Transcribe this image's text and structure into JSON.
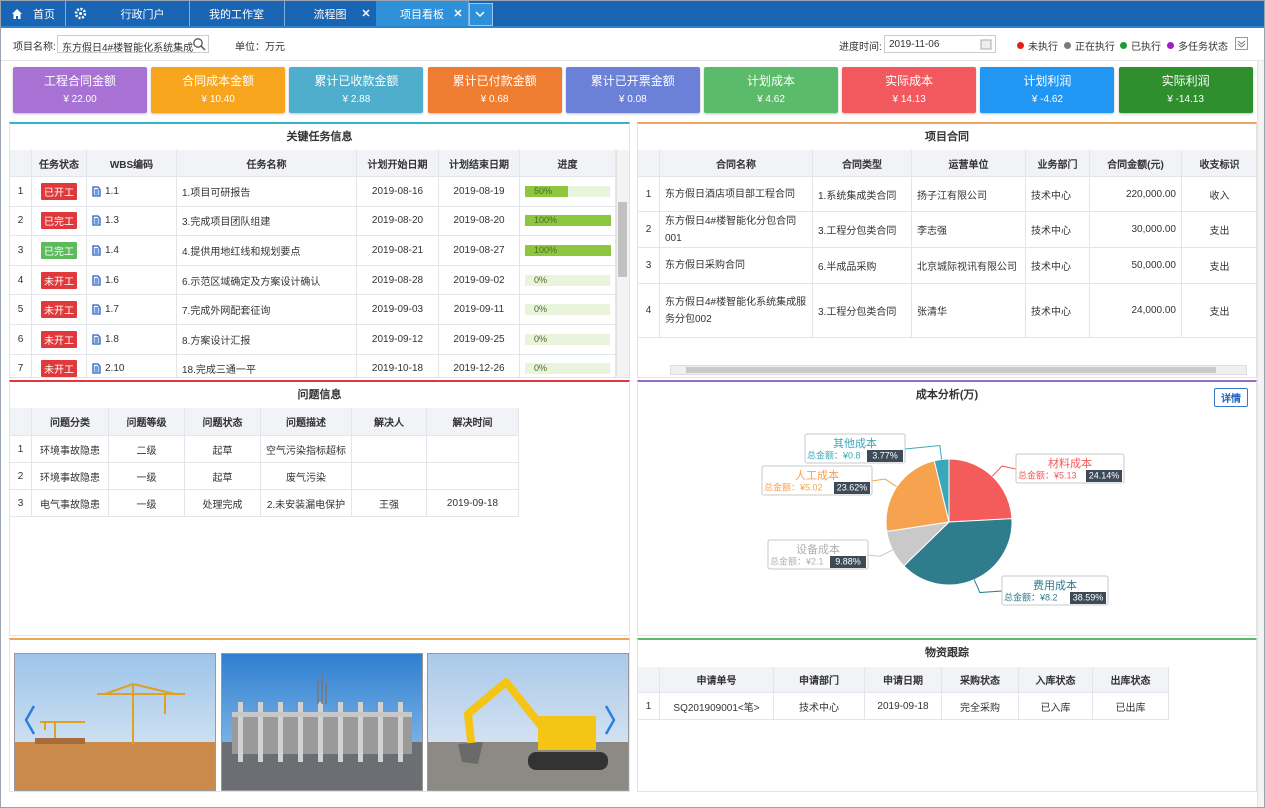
{
  "tabs": [
    "首页",
    "行政门户",
    "我的工作室",
    "流程图",
    "项目看板"
  ],
  "toolbar": {
    "project_label": "项目名称:",
    "project_value": "东方假日4#楼智能化系统集成",
    "unit": "单位：万元",
    "date_label": "进度时间:",
    "date_value": "2019-11-06",
    "legend": [
      {
        "label": "未执行",
        "color": "#e81c1c"
      },
      {
        "label": "正在执行",
        "color": "#7a7a7a"
      },
      {
        "label": "已执行",
        "color": "#1f9a2f"
      },
      {
        "label": "多任务状态",
        "color": "#9b1fc4"
      }
    ]
  },
  "kpis": [
    {
      "title": "工程合同金额",
      "value": "¥ 22.00",
      "color": "#a772d3"
    },
    {
      "title": "合同成本金额",
      "value": "¥ 10.40",
      "color": "#f6a51c"
    },
    {
      "title": "累计已收款金额",
      "value": "¥ 2.88",
      "color": "#4eaecb"
    },
    {
      "title": "累计已付款金额",
      "value": "¥ 0.68",
      "color": "#ee7d31"
    },
    {
      "title": "累计已开票金额",
      "value": "¥ 0.08",
      "color": "#6b81d8"
    },
    {
      "title": "计划成本",
      "value": "¥ 4.62",
      "color": "#5cbb6a"
    },
    {
      "title": "实际成本",
      "value": "¥ 14.13",
      "color": "#f2595e"
    },
    {
      "title": "计划利润",
      "value": "¥ -4.62",
      "color": "#2196f3"
    },
    {
      "title": "实际利润",
      "value": "¥ -14.13",
      "color": "#2e8f2c"
    }
  ],
  "tasks": {
    "title": "关键任务信息",
    "columns": [
      "任务状态",
      "WBS编码",
      "任务名称",
      "计划开始日期",
      "计划结束日期",
      "进度"
    ],
    "rows": [
      {
        "index": 1,
        "status": "已开工",
        "status_color": "#e0393b",
        "wbs": "1.1",
        "name": "1.项目可研报告",
        "start": "2019-08-16",
        "end": "2019-08-19",
        "progress": 50,
        "progress_label": "50%"
      },
      {
        "index": 2,
        "status": "已完工",
        "status_color": "#e0393b",
        "wbs": "1.3",
        "name": "3.完成项目团队组建",
        "start": "2019-08-20",
        "end": "2019-08-20",
        "progress": 100,
        "progress_label": "100%"
      },
      {
        "index": 3,
        "status": "已完工",
        "status_color": "#5cbb5c",
        "wbs": "1.4",
        "name": "4.提供用地红线和规划要点",
        "start": "2019-08-21",
        "end": "2019-08-27",
        "progress": 100,
        "progress_label": "100%"
      },
      {
        "index": 4,
        "status": "未开工",
        "status_color": "#e0393b",
        "wbs": "1.6",
        "name": "6.示范区域确定及方案设计确认",
        "start": "2019-08-28",
        "end": "2019-09-02",
        "progress": 0,
        "progress_label": "0%"
      },
      {
        "index": 5,
        "status": "未开工",
        "status_color": "#e0393b",
        "wbs": "1.7",
        "name": "7.完成外网配套征询",
        "start": "2019-09-03",
        "end": "2019-09-11",
        "progress": 0,
        "progress_label": "0%"
      },
      {
        "index": 6,
        "status": "未开工",
        "status_color": "#e0393b",
        "wbs": "1.8",
        "name": "8.方案设计汇报",
        "start": "2019-09-12",
        "end": "2019-09-25",
        "progress": 0,
        "progress_label": "0%"
      },
      {
        "index": 7,
        "status": "未开工",
        "status_color": "#e0393b",
        "wbs": "2.10",
        "name": "18.完成三通一平",
        "start": "2019-10-18",
        "end": "2019-12-26",
        "progress": 0,
        "progress_label": "0%"
      }
    ]
  },
  "contracts": {
    "title": "项目合同",
    "columns": [
      "合同名称",
      "合同类型",
      "运营单位",
      "业务部门",
      "合同金额(元)",
      "收支标识"
    ],
    "rows": [
      {
        "index": 1,
        "name": "东方假日酒店项目部工程合同",
        "type": "1.系统集成类合同",
        "unit": "扬子江有限公司",
        "dept": "技术中心",
        "amount": "220,000.00",
        "flag": "收入"
      },
      {
        "index": 2,
        "name": "东方假日4#楼智能化分包合同001",
        "type": "3.工程分包类合同",
        "unit": "李志强",
        "dept": "技术中心",
        "amount": "30,000.00",
        "flag": "支出"
      },
      {
        "index": 3,
        "name": "东方假日采购合同",
        "type": "6.半成品采购",
        "unit": "北京城际视讯有限公司",
        "dept": "技术中心",
        "amount": "50,000.00",
        "flag": "支出"
      },
      {
        "index": 4,
        "name": "东方假日4#楼智能化系统集成服务分包002",
        "type": "3.工程分包类合同",
        "unit": "张清华",
        "dept": "技术中心",
        "amount": "24,000.00",
        "flag": "支出"
      }
    ]
  },
  "issues": {
    "title": "问题信息",
    "columns": [
      "问题分类",
      "问题等级",
      "问题状态",
      "问题描述",
      "解决人",
      "解决时间"
    ],
    "rows": [
      {
        "index": 1,
        "category": "环境事故隐患",
        "level": "二级",
        "state": "起草",
        "desc": "空气污染指标超标"
      },
      {
        "index": 2,
        "category": "环境事故隐患",
        "level": "一级",
        "state": "起草",
        "desc": "废气污染"
      },
      {
        "index": 3,
        "category": "电气事故隐患",
        "level": "一级",
        "state": "处理完成",
        "desc": "2.未安装漏电保护",
        "solver": "王强",
        "time": "2019-09-18"
      }
    ]
  },
  "chart_data": {
    "type": "pie",
    "title": "成本分析(万)",
    "button": "详情",
    "categories": [
      "材料成本",
      "费用成本",
      "设备成本",
      "人工成本",
      "其他成本"
    ],
    "values": [
      5.13,
      8.2,
      2.1,
      5.02,
      0.8
    ],
    "value_labels": [
      "总金额：¥5.13",
      "总金额：¥8.2",
      "总金额：¥2.1",
      "总金额：¥5.02",
      "总金额：¥0.8"
    ],
    "percent_labels": [
      "24.14%",
      "38.59%",
      "9.88%",
      "23.62%",
      "3.77%"
    ],
    "colors": [
      "#f45b5b",
      "#2f7c8c",
      "#c9c9c9",
      "#f7a24f",
      "#3aa7bb"
    ]
  },
  "materials": {
    "title": "物资跟踪",
    "columns": [
      "申请单号",
      "申请部门",
      "申请日期",
      "采购状态",
      "入库状态",
      "出库状态"
    ],
    "rows": [
      {
        "index": 1,
        "no": "SQ201909001<笔>",
        "dept": "技术中心",
        "date": "2019-09-18",
        "purchase": "完全采购",
        "in": "已入库",
        "out": "已出库"
      }
    ]
  }
}
